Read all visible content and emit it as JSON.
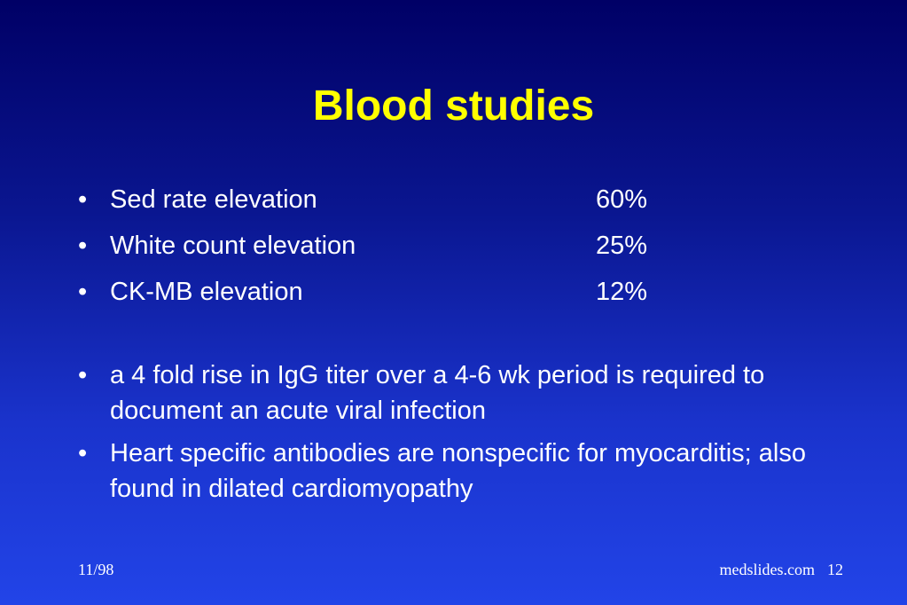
{
  "slide": {
    "title": "Blood studies",
    "bullet_char": "•",
    "stats": [
      {
        "label": "Sed rate elevation",
        "value": "60%"
      },
      {
        "label": "White count elevation",
        "value": "25%"
      },
      {
        "label": "CK-MB elevation",
        "value": "12%"
      }
    ],
    "notes": [
      "a 4 fold  rise in IgG titer over a 4-6 wk period is required to document an acute viral infection",
      "Heart specific antibodies are nonspecific for myocarditis; also found in dilated cardiomyopathy"
    ],
    "footer": {
      "date": "11/98",
      "source": "medslides.com",
      "page_number": "12"
    },
    "colors": {
      "title": "#ffff00",
      "text": "#ffffff",
      "background_top": "#000066",
      "background_bottom": "#2244e8"
    }
  }
}
